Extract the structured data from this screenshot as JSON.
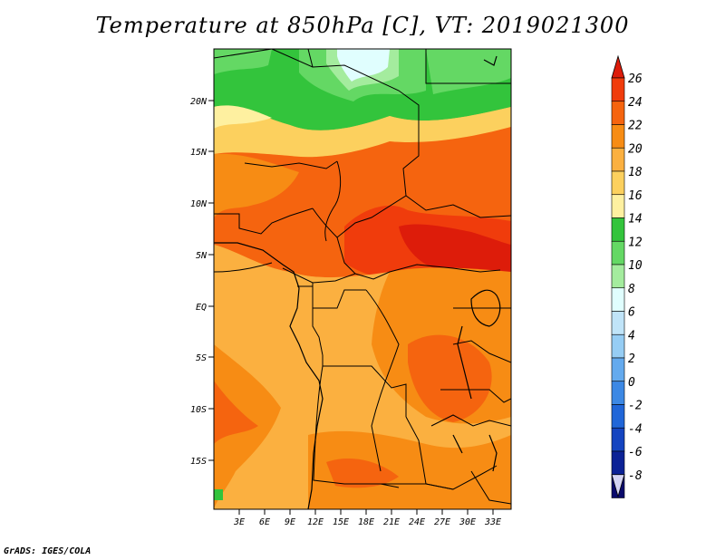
{
  "title": "Temperature at 850hPa [C], VT: 2019021300",
  "credit": "GrADS: IGES/COLA",
  "lat_labels": [
    "20N",
    "15N",
    "10N",
    "5N",
    "EQ",
    "5S",
    "10S",
    "15S"
  ],
  "lon_labels": [
    "3E",
    "6E",
    "9E",
    "12E",
    "15E",
    "18E",
    "21E",
    "24E",
    "27E",
    "30E",
    "33E"
  ],
  "colorbar": {
    "labels": [
      "26",
      "24",
      "22",
      "20",
      "18",
      "16",
      "14",
      "12",
      "10",
      "8",
      "6",
      "4",
      "2",
      "0",
      "-2",
      "-4",
      "-6",
      "-8"
    ],
    "colors": [
      "#dd1c0a",
      "#f03c0c",
      "#f5640f",
      "#f78c14",
      "#fbb040",
      "#fcd05e",
      "#fef0a0",
      "#33c43c",
      "#64d864",
      "#a4ec9e",
      "#e0fefe",
      "#c0e4f8",
      "#96cdf4",
      "#64aaee",
      "#3c88e4",
      "#2066d8",
      "#1444c0",
      "#0c2296",
      "#0a0a6c"
    ],
    "over_color": "#dd1c0a",
    "under_color": "#d4d4f4"
  }
}
